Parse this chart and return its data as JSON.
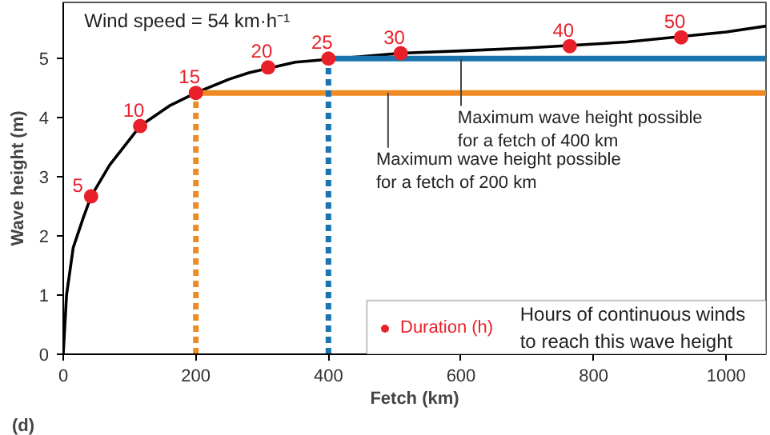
{
  "chart_data": {
    "type": "line",
    "xlabel": "Fetch (km)",
    "ylabel": "Wave height (m)",
    "xlim": [
      0,
      1060
    ],
    "ylim": [
      0,
      5.95
    ],
    "xticks": [
      0,
      200,
      400,
      600,
      800,
      1000
    ],
    "yticks": [
      0,
      1,
      2,
      3,
      4,
      5
    ],
    "grid": false,
    "legend": "bottom right",
    "series": [
      {
        "color": "#000000",
        "line_style": "solid",
        "marker": "none",
        "x": [
          0,
          5,
          15,
          30,
          42,
          70,
          116,
          160,
          200,
          250,
          280,
          350,
          509,
          600,
          700,
          850,
          1000,
          1060
        ],
        "values": [
          0,
          1.0,
          1.8,
          2.3,
          2.67,
          3.2,
          3.86,
          4.2,
          4.42,
          4.65,
          4.76,
          4.94,
          5.09,
          5.13,
          5.18,
          5.28,
          5.45,
          5.55
        ]
      },
      {
        "color": "#f08a24",
        "line_style": "solid",
        "marker": "none",
        "x": [
          200,
          1060
        ],
        "values": [
          4.42,
          4.42
        ]
      },
      {
        "color": "#f08a24",
        "line_style": "dashed",
        "marker": "none",
        "x": [
          200,
          200
        ],
        "values": [
          0,
          4.42
        ]
      },
      {
        "color": "#1a74b0",
        "line_style": "solid",
        "marker": "none",
        "x": [
          400,
          1060
        ],
        "values": [
          5.0,
          5.0
        ]
      },
      {
        "color": "#1a74b0",
        "line_style": "dashed",
        "marker": "none",
        "x": [
          400,
          400
        ],
        "values": [
          0,
          5.0
        ]
      },
      {
        "type": "scatter",
        "name": "Duration (h)",
        "color": "#e8202a",
        "marker": "circle",
        "x": [
          42,
          116,
          200,
          309,
          400,
          509,
          764,
          932
        ],
        "values": [
          2.67,
          3.86,
          4.42,
          4.85,
          5.0,
          5.09,
          5.21,
          5.36
        ]
      }
    ],
    "annotations": [
      "Wind  speed = 54 km·h⁻¹",
      "(d)",
      {
        "text": "5",
        "x": 42,
        "y": 2.67
      },
      {
        "text": "10",
        "x": 116,
        "y": 3.86
      },
      {
        "text": "15",
        "x": 200,
        "y": 4.42
      },
      {
        "text": "20",
        "x": 309,
        "y": 4.85
      },
      {
        "text": "25",
        "x": 400,
        "y": 5.0
      },
      {
        "text": "30",
        "x": 509,
        "y": 5.09
      },
      {
        "text": "40",
        "x": 764,
        "y": 5.21
      },
      {
        "text": "50",
        "x": 932,
        "y": 5.36
      },
      {
        "text": "Maximum wave height possible\n for a fetch of 400 km",
        "x": 600,
        "y": 5.0
      },
      {
        "text": "Maximum wave height possible\n for a fetch of 200 km",
        "x": 490,
        "y": 4.42
      },
      "Hours of continuous winds\nto reach this wave height"
    ]
  }
}
